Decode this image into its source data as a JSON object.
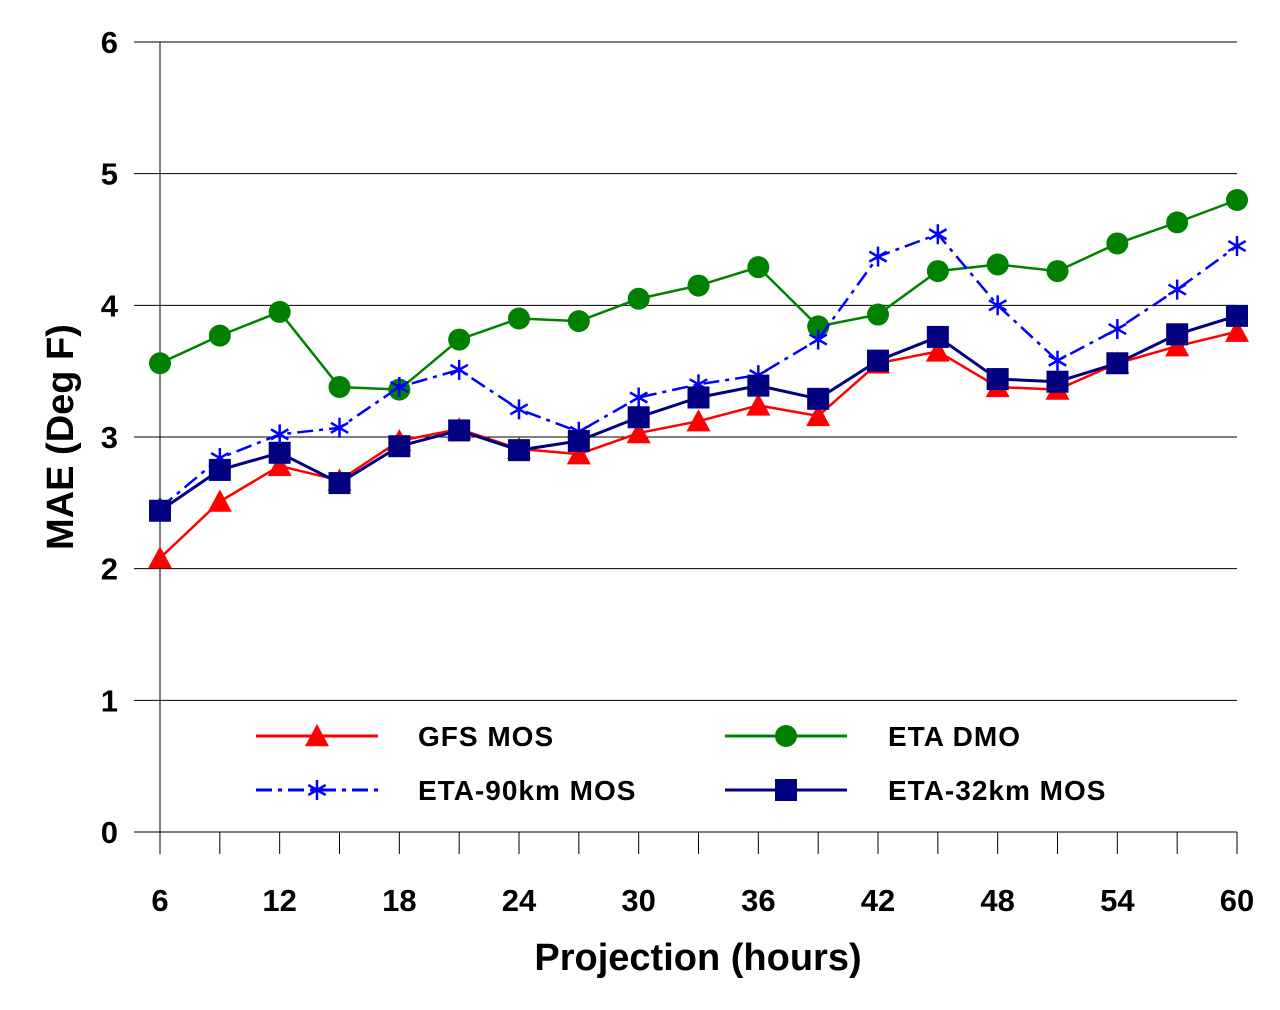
{
  "chart_data": {
    "type": "line",
    "xlabel": "Projection (hours)",
    "ylabel": "MAE (Deg F)",
    "ylim": [
      0,
      6
    ],
    "xlim": [
      6,
      60
    ],
    "yticks": [
      "0",
      "1",
      "2",
      "3",
      "4",
      "5",
      "6"
    ],
    "xticks": [
      "6",
      "12",
      "18",
      "24",
      "30",
      "36",
      "42",
      "48",
      "54",
      "60"
    ],
    "grid": "horizontal",
    "legend_position": "bottom-inside",
    "x": [
      6,
      9,
      12,
      15,
      18,
      21,
      24,
      27,
      30,
      33,
      36,
      39,
      42,
      45,
      48,
      51,
      54,
      57,
      60
    ],
    "series": [
      {
        "name": "GFS MOS",
        "color": "#ff0000",
        "marker": "triangle",
        "dash": "solid",
        "values": [
          2.08,
          2.51,
          2.78,
          2.67,
          2.97,
          3.06,
          2.91,
          2.87,
          3.03,
          3.12,
          3.24,
          3.16,
          3.56,
          3.65,
          3.38,
          3.36,
          3.56,
          3.69,
          3.8
        ]
      },
      {
        "name": "ETA DMO",
        "color": "#008000",
        "marker": "circle",
        "dash": "solid",
        "values": [
          3.56,
          3.77,
          3.95,
          3.38,
          3.36,
          3.74,
          3.9,
          3.88,
          4.05,
          4.15,
          4.29,
          3.84,
          3.93,
          4.26,
          4.31,
          4.26,
          4.47,
          4.63,
          4.8
        ]
      },
      {
        "name": "ETA-90km MOS",
        "color": "#0000ff",
        "marker": "asterisk",
        "dash": "dashdot",
        "values": [
          2.46,
          2.84,
          3.02,
          3.07,
          3.38,
          3.51,
          3.21,
          3.04,
          3.3,
          3.4,
          3.47,
          3.74,
          4.37,
          4.54,
          4.0,
          3.58,
          3.82,
          4.12,
          4.45
        ]
      },
      {
        "name": "ETA-32km MOS",
        "color": "#000080",
        "marker": "square",
        "dash": "solid",
        "values": [
          2.44,
          2.75,
          2.88,
          2.65,
          2.93,
          3.05,
          2.9,
          2.97,
          3.15,
          3.3,
          3.39,
          3.29,
          3.58,
          3.76,
          3.44,
          3.42,
          3.56,
          3.78,
          3.92
        ]
      }
    ]
  }
}
